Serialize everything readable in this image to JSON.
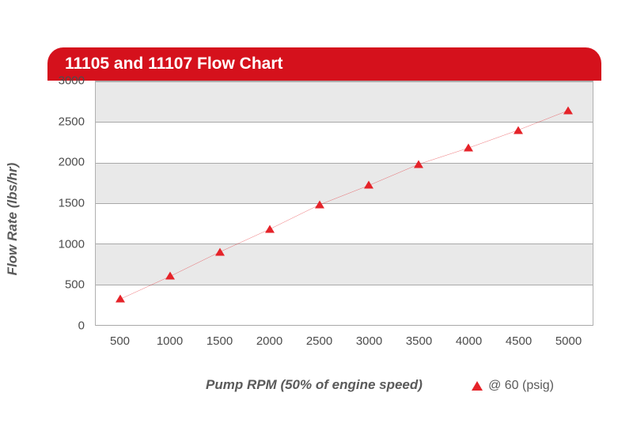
{
  "chart": {
    "type": "line-scatter",
    "title": "11105 and 11107 Flow Chart",
    "title_bar_color": "#d5111c",
    "title_text_color": "#ffffff",
    "xlabel": "Pump RPM (50% of engine speed)",
    "ylabel": "Flow Rate (lbs/hr)",
    "label_color": "#5a5a5a",
    "legend_label": "@ 60 (psig)",
    "xlim": [
      250,
      5250
    ],
    "ylim": [
      0,
      3000
    ],
    "xtick_step": 500,
    "xtick_start": 500,
    "xtick_end": 5000,
    "ytick_step": 500,
    "ytick_start": 0,
    "ytick_end": 3000,
    "band_color": "#e9e9e9",
    "grid_color": "#a8a8a8",
    "background_color": "#ffffff",
    "tick_text_color": "#4c4c4c",
    "series": {
      "color": "#e52329",
      "line_width": 1.3,
      "marker": "triangle",
      "marker_size": 12,
      "x": [
        500,
        1000,
        1500,
        2000,
        2500,
        3000,
        3500,
        4000,
        4500,
        5000
      ],
      "y": [
        320,
        600,
        900,
        1180,
        1480,
        1720,
        1980,
        2180,
        2400,
        2640
      ]
    }
  }
}
